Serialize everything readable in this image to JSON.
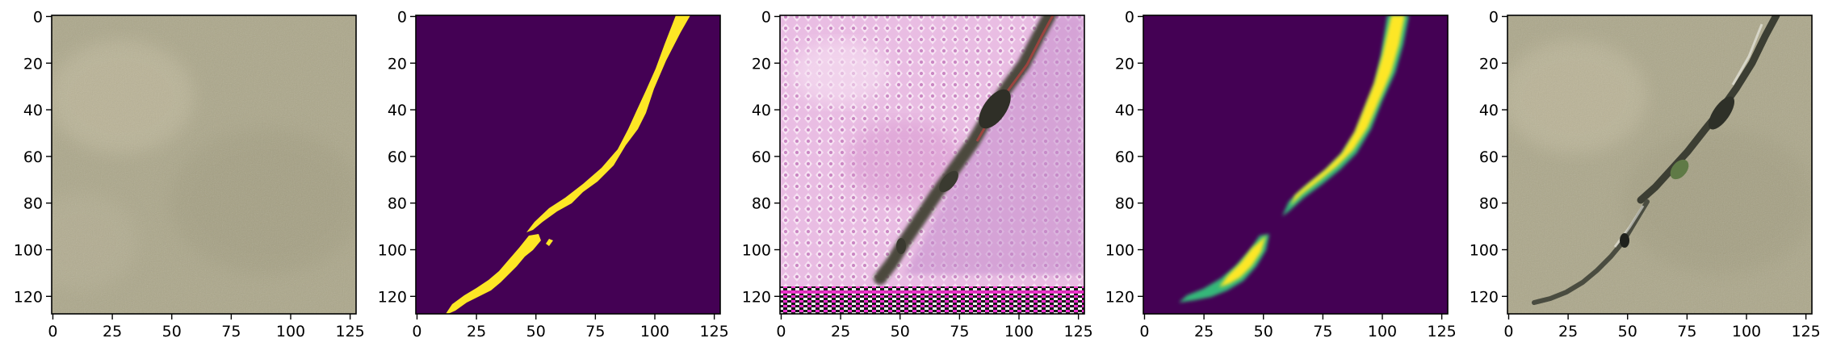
{
  "figure": {
    "panel_count": 5,
    "shared_axes": {
      "x_tick_labels": [
        "0",
        "25",
        "50",
        "75",
        "100",
        "125"
      ],
      "y_tick_labels": [
        "0",
        "20",
        "40",
        "60",
        "80",
        "100",
        "120"
      ]
    },
    "panels": [
      {
        "id": "input-image",
        "content": "sandy terrain photograph, beige-gray",
        "colors": {
          "base": "#aca78a",
          "light": "#c9c2a6",
          "dark": "#8f8b72"
        }
      },
      {
        "id": "ground-truth-mask",
        "content": "binary mask, yellow crack on dark purple",
        "colors": {
          "background": "#440154",
          "foreground": "#fde725"
        }
      },
      {
        "id": "generated-image",
        "content": "pink/magenta textured synthetic image with diagonal crack",
        "colors": {
          "base": "#e8b6e0",
          "light": "#f6dcf2",
          "dark": "#5c5a4a",
          "stripe": "#ff2fd2"
        }
      },
      {
        "id": "predicted-mask",
        "content": "soft prediction mask, yellow-green crack on dark purple",
        "colors": {
          "background": "#440154",
          "foreground": "#fde725",
          "edge": "#35b779"
        }
      },
      {
        "id": "overlay-image",
        "content": "terrain photograph with dark crack overlay",
        "colors": {
          "base": "#aca78a",
          "light": "#c9c2a6",
          "dark": "#3c3e33",
          "green": "#5f7a46"
        }
      }
    ]
  }
}
